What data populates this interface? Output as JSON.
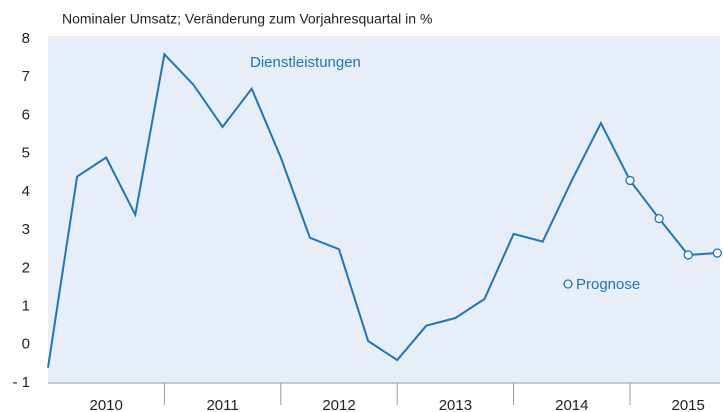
{
  "chart_data": {
    "type": "line",
    "title": "Nominaler Umsatz;  Veränderung zum Vorjahresquartal in %",
    "annotations": [
      "Dienstleistungen"
    ],
    "x_labels": [
      "2010",
      "2011",
      "2012",
      "2013",
      "2014",
      "2015"
    ],
    "series": [
      {
        "name": "Dienstleistungen",
        "color": "#1b76bc",
        "values": [
          -0.6,
          4.4,
          4.9,
          3.4,
          7.6,
          6.8,
          5.7,
          6.7,
          4.9,
          2.8,
          2.5,
          0.1,
          -0.4,
          0.5,
          0.7,
          1.2,
          2.9,
          2.7,
          4.3,
          5.8,
          4.3,
          3.3,
          2.35,
          2.4
        ]
      },
      {
        "name": "Prognose",
        "color": "#1b76bc",
        "values": [
          null,
          null,
          null,
          null,
          null,
          null,
          null,
          null,
          null,
          null,
          null,
          null,
          null,
          null,
          null,
          null,
          null,
          null,
          null,
          null,
          4.3,
          3.3,
          2.35,
          2.4
        ]
      }
    ],
    "ylim": [
      -1,
      8
    ],
    "yticks": [
      {
        "value": -1,
        "label": "- 1"
      },
      0,
      1,
      2,
      3,
      4,
      5,
      6,
      7,
      8
    ]
  }
}
